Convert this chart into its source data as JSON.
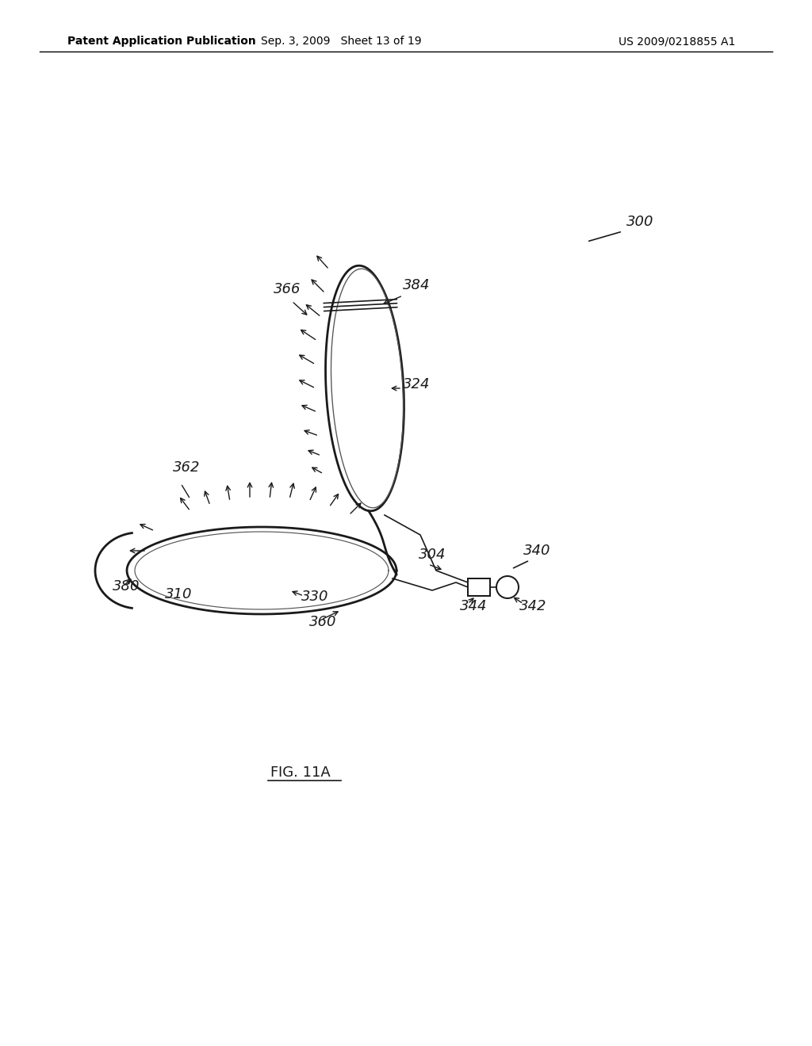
{
  "bg_color": "#ffffff",
  "header_left": "Patent Application Publication",
  "header_mid": "Sep. 3, 2009   Sheet 13 of 19",
  "header_right": "US 2009/0218855 A1",
  "figure_label": "FIG. 11A",
  "label_300": "300",
  "label_366": "366",
  "label_384": "384",
  "label_324": "324",
  "label_362": "362",
  "label_304": "304",
  "label_340": "340",
  "label_342": "342",
  "label_344": "344",
  "label_330": "330",
  "label_310": "310",
  "label_380": "380",
  "label_360": "360"
}
